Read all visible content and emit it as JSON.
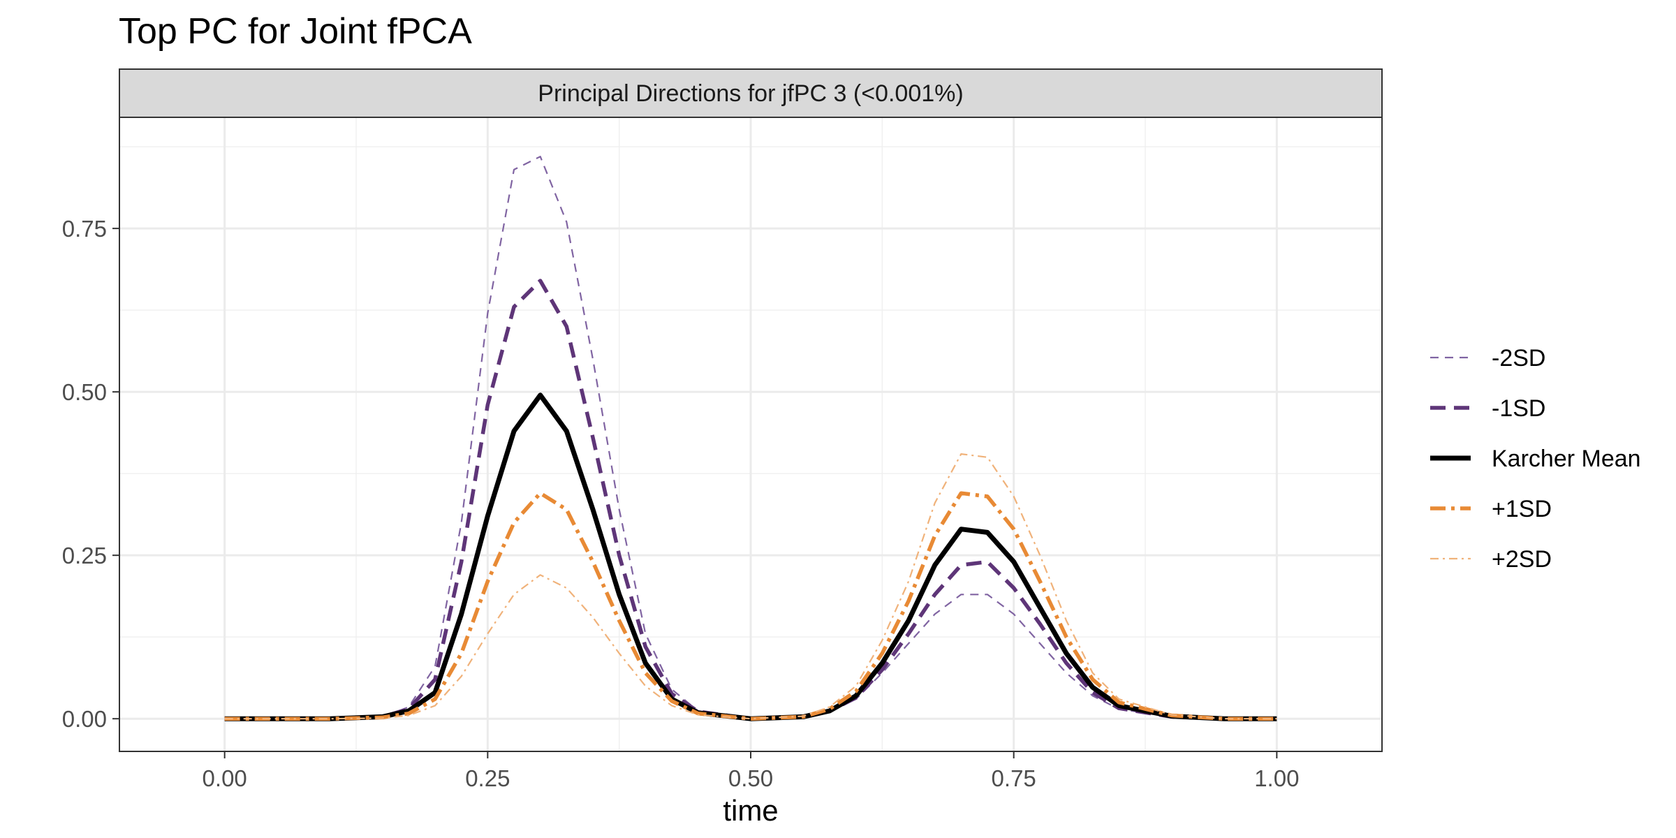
{
  "chart_data": {
    "type": "line",
    "title": "Top PC for Joint fPCA",
    "facet_label": "Principal Directions for jfPC 3 (<0.001%)",
    "xlabel": "time",
    "ylabel": "",
    "xlim": [
      -0.1,
      1.1
    ],
    "ylim": [
      -0.05,
      0.92
    ],
    "x_ticks": [
      0.0,
      0.25,
      0.5,
      0.75,
      1.0
    ],
    "x_tick_labels": [
      "0.00",
      "0.25",
      "0.50",
      "0.75",
      "1.00"
    ],
    "y_ticks": [
      0.0,
      0.25,
      0.5,
      0.75
    ],
    "y_tick_labels": [
      "0.00",
      "0.25",
      "0.50",
      "0.75"
    ],
    "grid": true,
    "legend_position": "right",
    "x": [
      0.0,
      0.05,
      0.1,
      0.15,
      0.175,
      0.2,
      0.225,
      0.25,
      0.275,
      0.3,
      0.325,
      0.35,
      0.375,
      0.4,
      0.425,
      0.45,
      0.5,
      0.55,
      0.575,
      0.6,
      0.625,
      0.65,
      0.675,
      0.7,
      0.725,
      0.75,
      0.775,
      0.8,
      0.825,
      0.85,
      0.9,
      0.95,
      1.0
    ],
    "series": [
      {
        "name": "-2SD",
        "color": "#8064a2",
        "dash": "12,9",
        "width": 2.2,
        "values": [
          0.0,
          0.0,
          0.0,
          0.002,
          0.018,
          0.08,
          0.3,
          0.62,
          0.84,
          0.86,
          0.76,
          0.55,
          0.32,
          0.13,
          0.045,
          0.012,
          0.0,
          0.003,
          0.012,
          0.03,
          0.07,
          0.115,
          0.16,
          0.19,
          0.19,
          0.16,
          0.115,
          0.07,
          0.035,
          0.015,
          0.003,
          0.0,
          0.0
        ]
      },
      {
        "name": "-1SD",
        "color": "#5e3578",
        "dash": "22,12",
        "width": 5.5,
        "values": [
          0.0,
          0.0,
          0.0,
          0.003,
          0.015,
          0.06,
          0.24,
          0.48,
          0.63,
          0.67,
          0.6,
          0.43,
          0.25,
          0.11,
          0.038,
          0.011,
          0.0,
          0.003,
          0.012,
          0.032,
          0.075,
          0.13,
          0.19,
          0.235,
          0.24,
          0.2,
          0.145,
          0.085,
          0.04,
          0.016,
          0.003,
          0.0,
          0.0
        ]
      },
      {
        "name": "Karcher Mean",
        "color": "#000000",
        "dash": "",
        "width": 7,
        "values": [
          0.0,
          0.0,
          0.0,
          0.003,
          0.012,
          0.04,
          0.16,
          0.31,
          0.44,
          0.495,
          0.44,
          0.32,
          0.19,
          0.085,
          0.03,
          0.009,
          0.0,
          0.003,
          0.012,
          0.035,
          0.085,
          0.15,
          0.235,
          0.29,
          0.285,
          0.24,
          0.17,
          0.1,
          0.048,
          0.02,
          0.004,
          0.0,
          0.0
        ]
      },
      {
        "name": "+1SD",
        "color": "#e88a35",
        "dash": "22,8,5,8",
        "width": 5.5,
        "values": [
          0.0,
          0.0,
          0.0,
          0.002,
          0.008,
          0.03,
          0.1,
          0.21,
          0.3,
          0.345,
          0.32,
          0.24,
          0.15,
          0.07,
          0.027,
          0.008,
          0.0,
          0.003,
          0.015,
          0.042,
          0.1,
          0.18,
          0.28,
          0.345,
          0.34,
          0.29,
          0.21,
          0.125,
          0.06,
          0.025,
          0.005,
          0.0,
          0.0
        ]
      },
      {
        "name": "+2SD",
        "color": "#f0b27a",
        "dash": "12,6,3,6",
        "width": 2.2,
        "values": [
          0.0,
          0.0,
          0.0,
          0.001,
          0.005,
          0.02,
          0.065,
          0.13,
          0.19,
          0.22,
          0.2,
          0.155,
          0.1,
          0.05,
          0.02,
          0.006,
          0.0,
          0.004,
          0.018,
          0.05,
          0.12,
          0.21,
          0.33,
          0.405,
          0.4,
          0.34,
          0.25,
          0.15,
          0.07,
          0.03,
          0.006,
          0.0,
          0.0
        ]
      }
    ]
  }
}
